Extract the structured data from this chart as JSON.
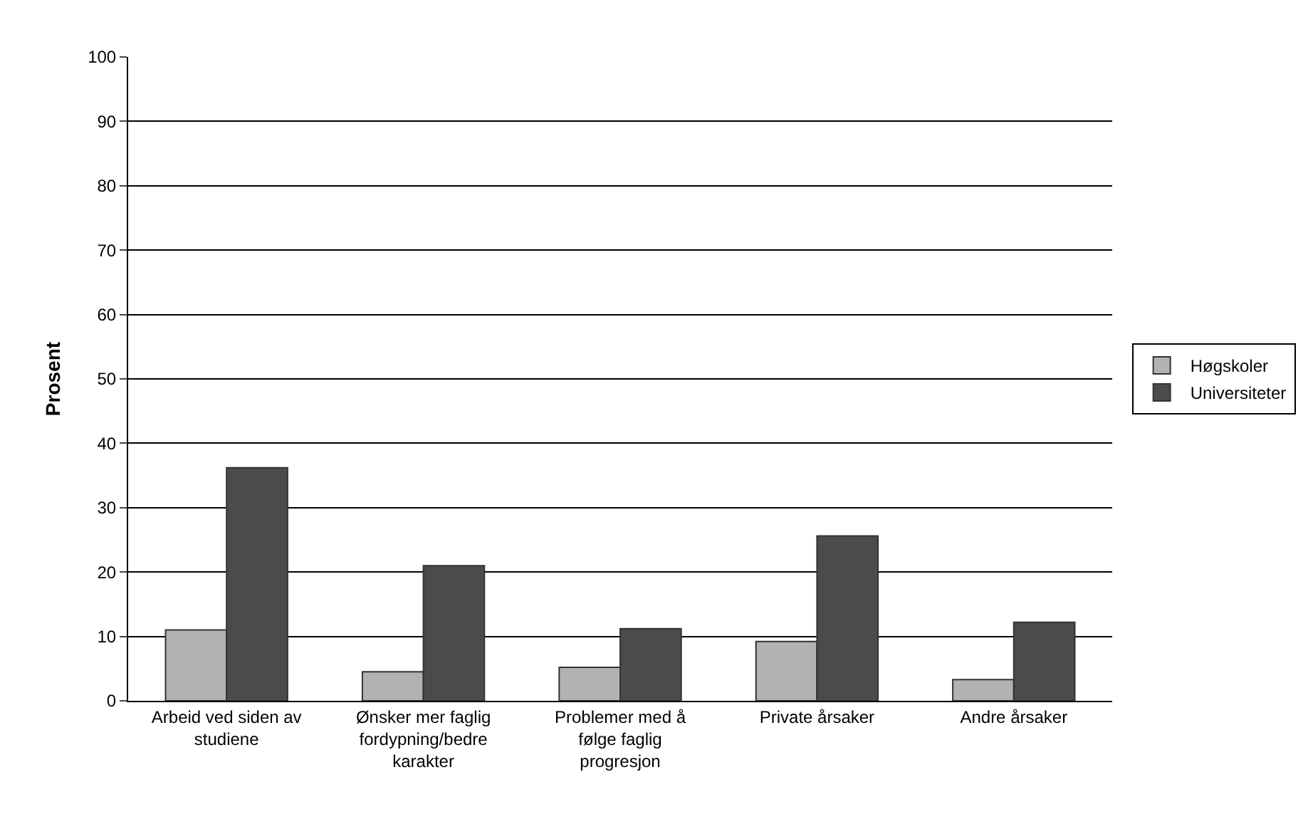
{
  "chart_data": {
    "type": "bar",
    "ylabel": "Prosent",
    "categories": [
      "Arbeid ved siden av studiene",
      "Ønsker mer faglig fordypning/bedre karakter",
      "Problemer med å følge faglig progresjon",
      "Private årsaker",
      "Andre årsaker"
    ],
    "series": [
      {
        "name": "Høgskoler",
        "color": "#b2b2b4",
        "values": [
          11.0,
          4.5,
          5.2,
          9.2,
          3.3
        ]
      },
      {
        "name": "Universiteter",
        "color": "#4b4b4d",
        "values": [
          36.2,
          21.0,
          11.2,
          25.6,
          12.2
        ]
      }
    ],
    "ylim": [
      0,
      100
    ],
    "yticks": [
      0,
      10,
      20,
      30,
      40,
      50,
      60,
      70,
      80,
      90,
      100
    ],
    "grid": "y",
    "legend": "right"
  }
}
